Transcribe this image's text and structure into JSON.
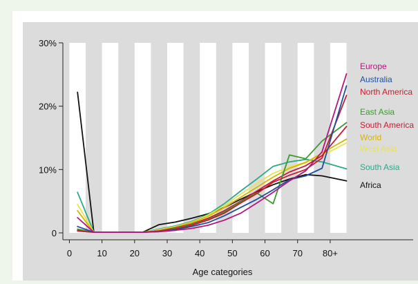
{
  "chart_data": {
    "type": "line",
    "title": "",
    "xlabel": "Age categories",
    "ylabel": "",
    "xlim": [
      -2,
      101
    ],
    "ylim": [
      0,
      30
    ],
    "x_ticks": [
      {
        "value": 0,
        "label": "0"
      },
      {
        "value": 10,
        "label": "10"
      },
      {
        "value": 20,
        "label": "20"
      },
      {
        "value": 30,
        "label": "30"
      },
      {
        "value": 40,
        "label": "40"
      },
      {
        "value": 50,
        "label": "50"
      },
      {
        "value": 60,
        "label": "60"
      },
      {
        "value": 70,
        "label": "70"
      },
      {
        "value": 80,
        "label": "80+"
      }
    ],
    "y_ticks": [
      {
        "value": 0,
        "label": "0"
      },
      {
        "value": 10,
        "label": "10%"
      },
      {
        "value": 20,
        "label": "20%"
      },
      {
        "value": 30,
        "label": "30%"
      }
    ],
    "band_edges": [
      0,
      5,
      10,
      15,
      20,
      25,
      30,
      35,
      40,
      45,
      50,
      55,
      60,
      65,
      70,
      75,
      80,
      85,
      90
    ],
    "x": [
      2.5,
      7.5,
      12.5,
      17.5,
      22.5,
      27.5,
      32.5,
      37.5,
      42.5,
      47.5,
      52.5,
      57.5,
      62.5,
      67.5,
      72.5,
      77.5,
      85
    ],
    "series": [
      {
        "name": "Africa",
        "color": "#111111",
        "values": [
          22.2,
          0.1,
          0.1,
          0.1,
          0.1,
          1.3,
          1.7,
          2.3,
          3.0,
          4.0,
          5.3,
          6.5,
          7.6,
          8.5,
          9.2,
          9.0,
          8.2
        ]
      },
      {
        "name": "South Asia",
        "color": "#2aa98a",
        "values": [
          6.4,
          0.1,
          0.1,
          0.1,
          0.1,
          0.6,
          1.1,
          1.8,
          2.9,
          4.6,
          6.6,
          8.5,
          10.5,
          11.2,
          11.6,
          11.2,
          10.1
        ]
      },
      {
        "name": "West Asia",
        "color": "#e8e44f",
        "values": [
          4.5,
          0.1,
          0.1,
          0.1,
          0.1,
          0.5,
          1.0,
          1.7,
          2.8,
          4.3,
          6.1,
          7.8,
          9.4,
          10.4,
          11.2,
          12.2,
          14.2
        ]
      },
      {
        "name": "World",
        "color": "#d8b400",
        "values": [
          3.5,
          0.1,
          0.1,
          0.1,
          0.1,
          0.4,
          0.9,
          1.6,
          2.6,
          4.0,
          5.6,
          7.2,
          8.8,
          10.2,
          11.1,
          12.6,
          14.8
        ]
      },
      {
        "name": "South America",
        "color": "#cc1a33",
        "values": [
          0.4,
          0.1,
          0.1,
          0.1,
          0.1,
          0.3,
          0.8,
          1.4,
          2.3,
          3.5,
          5.0,
          6.6,
          8.2,
          9.6,
          10.6,
          12.2,
          16.8
        ]
      },
      {
        "name": "East Asia",
        "color": "#3c9b2e",
        "values": [
          0.6,
          0.1,
          0.1,
          0.1,
          0.1,
          0.3,
          0.7,
          1.3,
          2.1,
          3.3,
          4.9,
          6.3,
          4.6,
          12.3,
          11.7,
          14.5,
          17.4
        ]
      },
      {
        "name": "North America",
        "color": "#c41f2a",
        "values": [
          0.3,
          0.1,
          0.1,
          0.1,
          0.1,
          0.3,
          0.6,
          1.2,
          2.0,
          3.1,
          4.7,
          6.2,
          8.0,
          9.1,
          10.0,
          11.8,
          21.7
        ]
      },
      {
        "name": "Australia",
        "color": "#1f4d9b",
        "values": [
          1.0,
          0.1,
          0.1,
          0.1,
          0.1,
          0.2,
          0.5,
          1.0,
          1.6,
          2.7,
          4.0,
          5.3,
          6.8,
          8.4,
          9.0,
          10.2,
          23.2
        ]
      },
      {
        "name": "Europe",
        "color": "#b5157e",
        "values": [
          2.4,
          0.1,
          0.1,
          0.1,
          0.1,
          0.2,
          0.4,
          0.7,
          1.2,
          2.0,
          3.1,
          4.7,
          6.4,
          8.2,
          9.8,
          12.8,
          25.1
        ]
      }
    ],
    "legend_order": [
      "Europe",
      "Australia",
      "North America",
      "East Asia",
      "South America",
      "World",
      "West Asia",
      "South Asia",
      "Africa"
    ],
    "grid": false,
    "legend": "right"
  }
}
